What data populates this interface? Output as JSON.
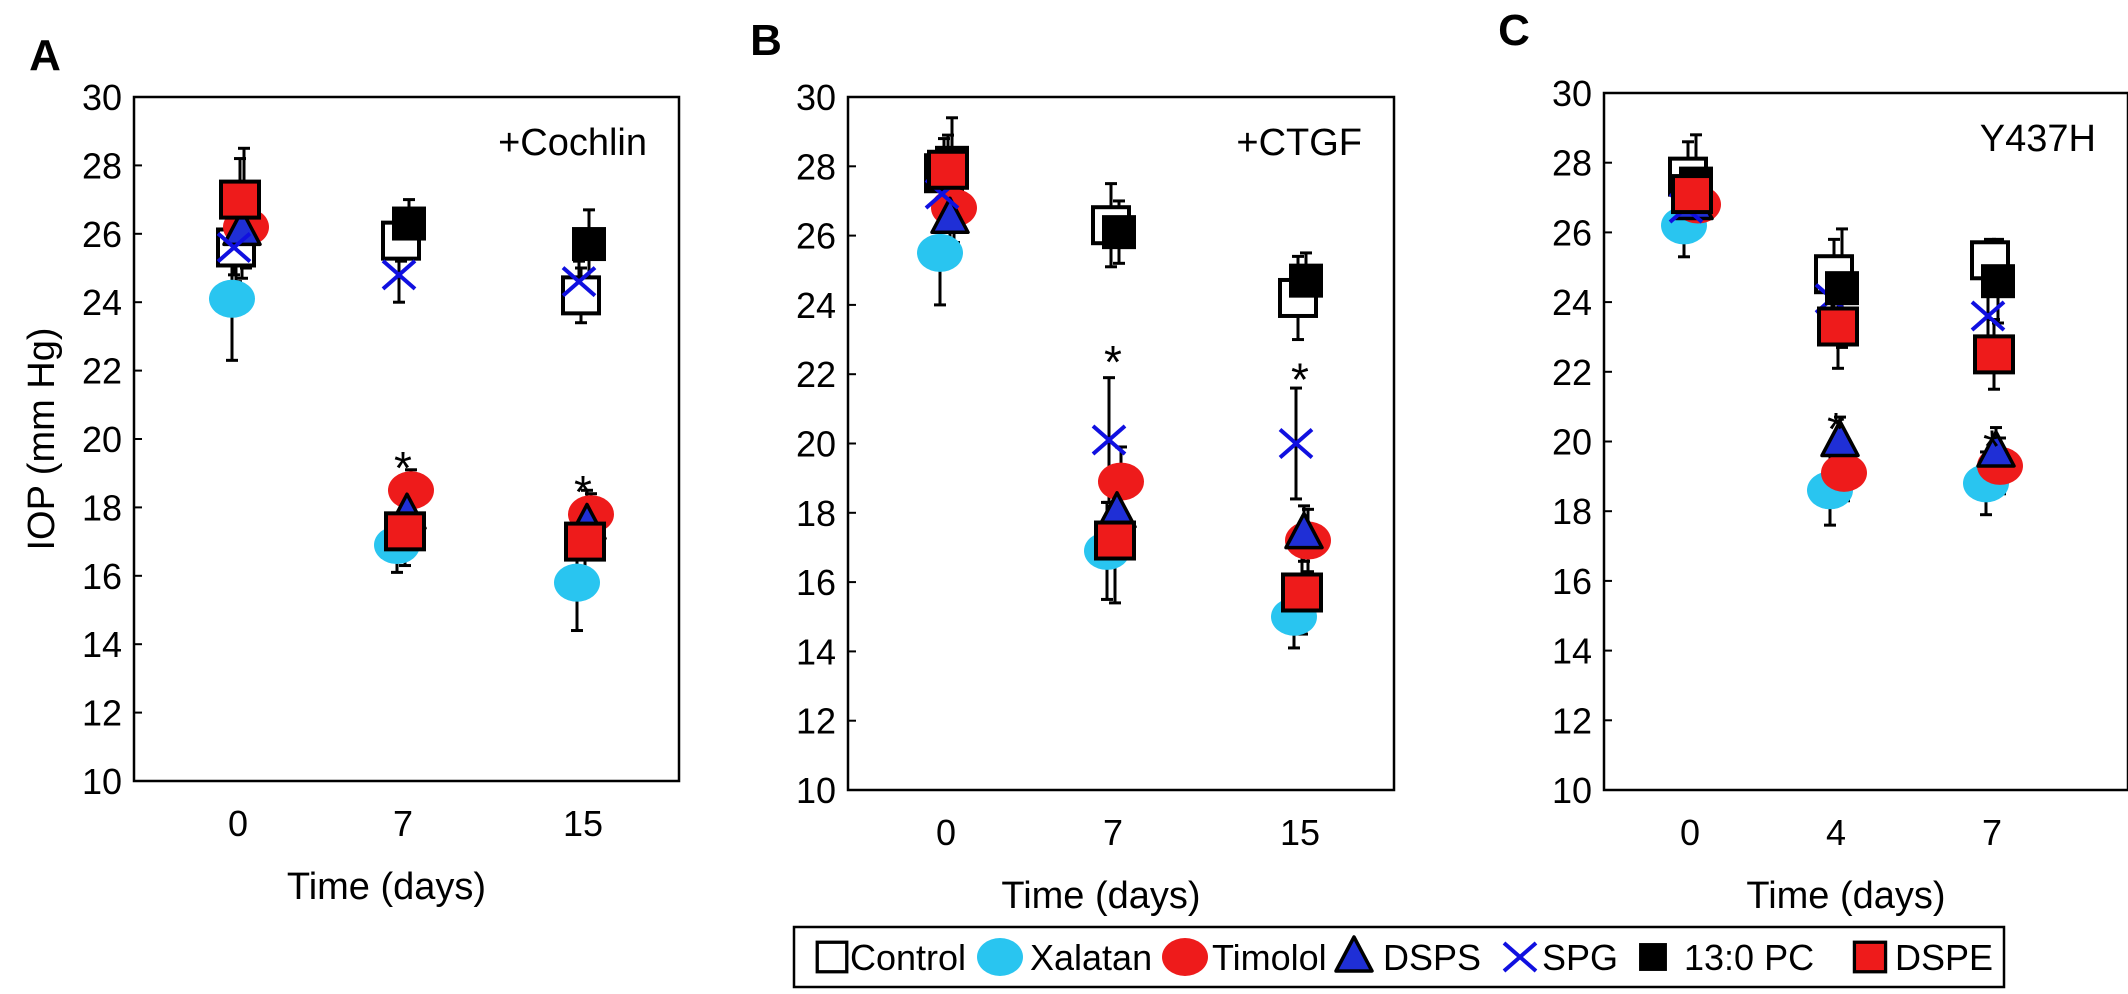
{
  "chart_data": [
    {
      "panel_label": "A",
      "type": "scatter",
      "annotation": "+Cochlin",
      "xlabel": "Time (days)",
      "ylabel": "IOP (mm Hg)",
      "ylim": [
        10,
        30
      ],
      "yticks": [
        10,
        12,
        14,
        16,
        18,
        20,
        22,
        24,
        26,
        28,
        30
      ],
      "categories": [
        "0",
        "7",
        "15"
      ],
      "significance": [
        {
          "category": "7",
          "y": 19.5,
          "text": "*"
        },
        {
          "category": "15",
          "y": 18.8,
          "text": "*"
        }
      ],
      "series": [
        {
          "name": "Control",
          "values": [
            25.6,
            25.8,
            24.2
          ],
          "err": [
            1.0,
            0.6,
            0.8
          ]
        },
        {
          "name": "Xalatan",
          "values": [
            24.1,
            16.9,
            15.8
          ],
          "err": [
            1.8,
            0.8,
            1.4
          ]
        },
        {
          "name": "Timolol",
          "values": [
            26.2,
            18.5,
            17.8
          ],
          "err": [
            1.2,
            0.6,
            0.6
          ]
        },
        {
          "name": "DSPS",
          "values": [
            26.1,
            17.8,
            17.5
          ],
          "err": [
            1.4,
            1.0,
            1.0
          ]
        },
        {
          "name": "SPG",
          "values": [
            25.6,
            24.8,
            24.6
          ],
          "err": [
            0.8,
            0.8,
            0.6
          ]
        },
        {
          "name": "13:0 PC",
          "values": [
            27.0,
            26.3,
            25.7
          ],
          "err": [
            1.5,
            0.7,
            1.0
          ]
        },
        {
          "name": "DSPE",
          "values": [
            27.0,
            17.3,
            17.0
          ],
          "err": [
            1.2,
            1.0,
            1.2
          ]
        }
      ]
    },
    {
      "panel_label": "B",
      "type": "scatter",
      "annotation": "+CTGF",
      "xlabel": "Time (days)",
      "ylabel": "",
      "ylim": [
        10,
        30
      ],
      "yticks": [
        10,
        12,
        14,
        16,
        18,
        20,
        22,
        24,
        26,
        28,
        30
      ],
      "categories": [
        "0",
        "7",
        "15"
      ],
      "significance": [
        {
          "category": "7",
          "y": 22.7,
          "text": "*"
        },
        {
          "category": "15",
          "y": 22.2,
          "text": "*"
        }
      ],
      "series": [
        {
          "name": "Control",
          "values": [
            27.8,
            26.3,
            24.2
          ],
          "err": [
            1.0,
            1.2,
            1.2
          ]
        },
        {
          "name": "Xalatan",
          "values": [
            25.5,
            16.9,
            15.0
          ],
          "err": [
            1.5,
            1.4,
            0.9
          ]
        },
        {
          "name": "Timolol",
          "values": [
            26.8,
            18.9,
            17.2
          ],
          "err": [
            1.0,
            1.0,
            0.9
          ]
        },
        {
          "name": "DSPS",
          "values": [
            26.5,
            18.0,
            17.4
          ],
          "err": [
            1.2,
            1.0,
            0.8
          ]
        },
        {
          "name": "SPG",
          "values": [
            27.2,
            20.1,
            20.0
          ],
          "err": [
            1.0,
            1.8,
            1.6
          ]
        },
        {
          "name": "13:0 PC",
          "values": [
            28.1,
            26.1,
            24.7
          ],
          "err": [
            1.3,
            0.9,
            0.8
          ]
        },
        {
          "name": "DSPE",
          "values": [
            27.9,
            17.2,
            15.7
          ],
          "err": [
            1.0,
            1.8,
            1.2
          ]
        }
      ]
    },
    {
      "panel_label": "C",
      "type": "scatter",
      "annotation": "Y437H",
      "xlabel": "Time (days)",
      "ylabel": "",
      "ylim": [
        10,
        30
      ],
      "yticks": [
        10,
        12,
        14,
        16,
        18,
        20,
        22,
        24,
        26,
        28,
        30
      ],
      "categories": [
        "0",
        "4",
        "7"
      ],
      "significance": [
        {
          "category": "4",
          "y": 20.7,
          "text": "*"
        },
        {
          "category": "7",
          "y": 20.2,
          "text": "*"
        }
      ],
      "series": [
        {
          "name": "Control",
          "values": [
            27.6,
            24.8,
            25.2
          ],
          "err": [
            1.0,
            1.0,
            0.6
          ]
        },
        {
          "name": "Xalatan",
          "values": [
            26.2,
            18.6,
            18.8
          ],
          "err": [
            0.9,
            1.0,
            0.9
          ]
        },
        {
          "name": "Timolol",
          "values": [
            26.8,
            19.1,
            19.3
          ],
          "err": [
            0.8,
            0.8,
            0.8
          ]
        },
        {
          "name": "DSPS",
          "values": [
            26.8,
            20.0,
            19.7
          ],
          "err": [
            0.8,
            0.7,
            0.7
          ]
        },
        {
          "name": "SPG",
          "values": [
            26.7,
            24.1,
            23.6
          ],
          "err": [
            0.8,
            0.8,
            0.8
          ]
        },
        {
          "name": "13:0 PC",
          "values": [
            27.4,
            24.4,
            24.6
          ],
          "err": [
            1.4,
            1.7,
            1.2
          ]
        },
        {
          "name": "DSPE",
          "values": [
            27.1,
            23.3,
            22.5
          ],
          "err": [
            1.0,
            1.2,
            1.0
          ]
        }
      ]
    }
  ],
  "legend": {
    "placement": "bottom-right",
    "items": [
      {
        "name": "Control",
        "marker": "open-square",
        "color": "#000000"
      },
      {
        "name": "Xalatan",
        "marker": "circle",
        "color": "#29c5f0"
      },
      {
        "name": "Timolol",
        "marker": "circle",
        "color": "#ee1b1b"
      },
      {
        "name": "DSPS",
        "marker": "triangle",
        "color": "#1f2fd6"
      },
      {
        "name": "SPG",
        "marker": "x",
        "color": "#1010e0"
      },
      {
        "name": "13:0 PC",
        "marker": "filled-square",
        "color": "#000000"
      },
      {
        "name": "DSPE",
        "marker": "red-square",
        "color": "#ee1b1b"
      }
    ]
  }
}
